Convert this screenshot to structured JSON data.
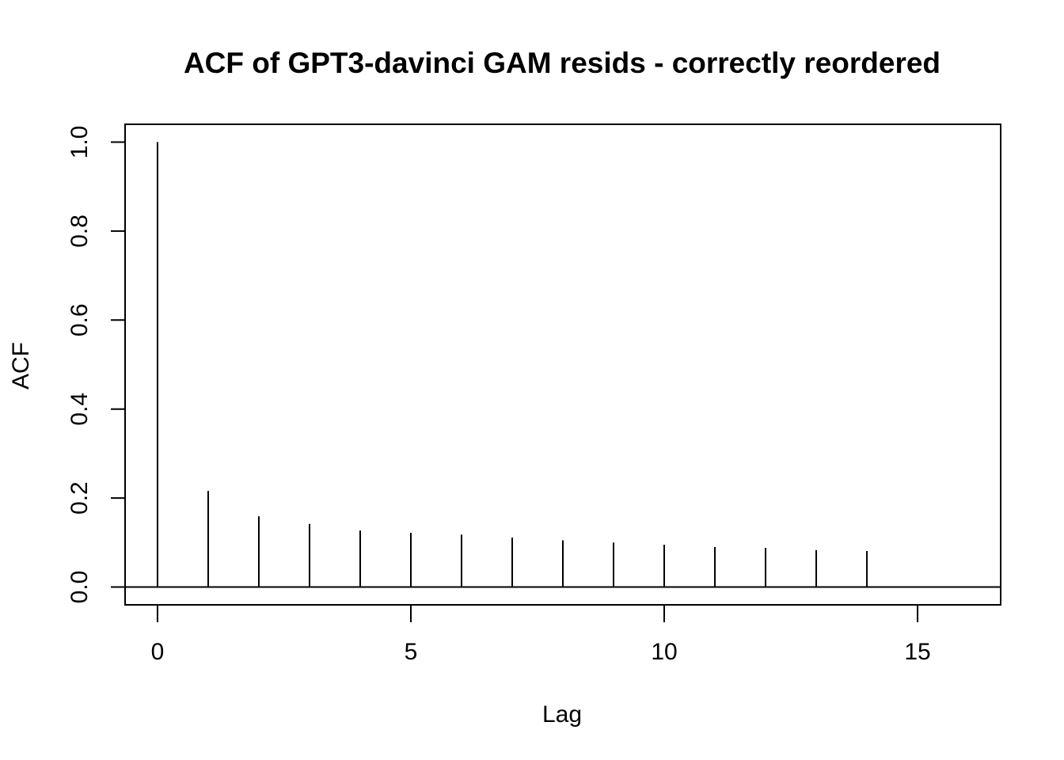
{
  "chart_data": {
    "type": "bar",
    "title": "ACF of GPT3-davinci GAM resids - correctly reordered",
    "xlabel": "Lag",
    "ylabel": "ACF",
    "x": [
      0,
      1,
      2,
      3,
      4,
      5,
      6,
      7,
      8,
      9,
      10,
      11,
      12,
      13,
      14
    ],
    "values": [
      1.0,
      0.216,
      0.159,
      0.142,
      0.127,
      0.122,
      0.118,
      0.111,
      0.105,
      0.1,
      0.095,
      0.09,
      0.088,
      0.083,
      0.081
    ],
    "xlim": [
      -0.64,
      16.64
    ],
    "ylim": [
      -0.04,
      1.04
    ],
    "x_ticks": [
      0,
      5,
      10,
      15
    ],
    "x_tick_labels": [
      "0",
      "5",
      "10",
      "15"
    ],
    "y_ticks": [
      0.0,
      0.2,
      0.4,
      0.6,
      0.8,
      1.0
    ],
    "y_tick_labels": [
      "0.0",
      "0.2",
      "0.4",
      "0.6",
      "0.8",
      "1.0"
    ],
    "zero_line": true,
    "grid": false,
    "legend": "none",
    "line_color": "#000000"
  }
}
